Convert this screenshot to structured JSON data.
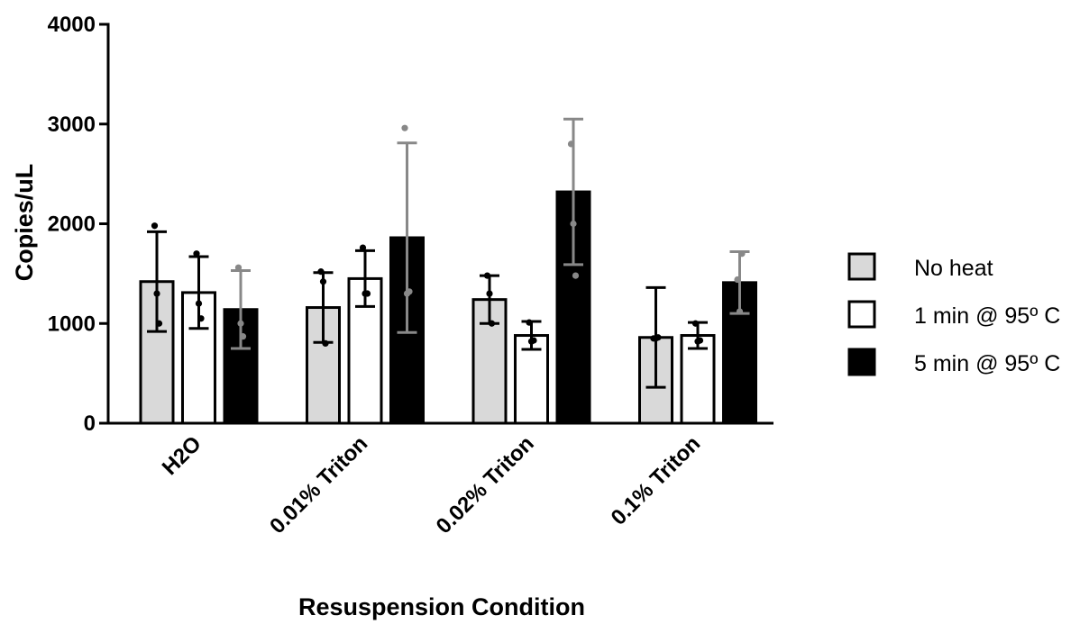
{
  "chart_data": {
    "type": "bar",
    "title": "",
    "xlabel": "Resuspension Condition",
    "ylabel": "Copies/uL",
    "ylim": [
      0,
      4000
    ],
    "yticks": [
      0,
      1000,
      2000,
      3000,
      4000
    ],
    "grid": false,
    "legend_position": "right",
    "categories": [
      "H2O",
      "0.01% Triton",
      "0.02% Triton",
      "0.1% Triton"
    ],
    "series": [
      {
        "name": "No heat",
        "fill": "#d9d9d9",
        "error_color": "#000000",
        "values": [
          1420,
          1160,
          1240,
          860
        ],
        "errors": [
          500,
          350,
          240,
          500
        ],
        "points": [
          [
            1980,
            1300,
            1000
          ],
          [
            1520,
            1420,
            800
          ],
          [
            1480,
            1300,
            1000
          ],
          [
            850,
            850,
            860
          ]
        ]
      },
      {
        "name": "1 min @ 95º C",
        "fill": "#ffffff",
        "error_color": "#000000",
        "values": [
          1310,
          1450,
          880,
          880
        ],
        "errors": [
          360,
          280,
          140,
          130
        ],
        "points": [
          [
            1700,
            1200,
            1050
          ],
          [
            1760,
            1300,
            1300
          ],
          [
            1010,
            820,
            830
          ],
          [
            1000,
            820,
            830
          ]
        ]
      },
      {
        "name": "5 min @ 95º C",
        "fill": "#000000",
        "error_color": "#888888",
        "values": [
          1140,
          1860,
          2320,
          1410
        ],
        "errors": [
          390,
          950,
          730,
          310
        ],
        "points": [
          [
            1560,
            1000,
            870
          ],
          [
            2960,
            1300,
            1320
          ],
          [
            2800,
            2000,
            1480
          ],
          [
            1440,
            1120,
            1700
          ]
        ]
      }
    ]
  }
}
